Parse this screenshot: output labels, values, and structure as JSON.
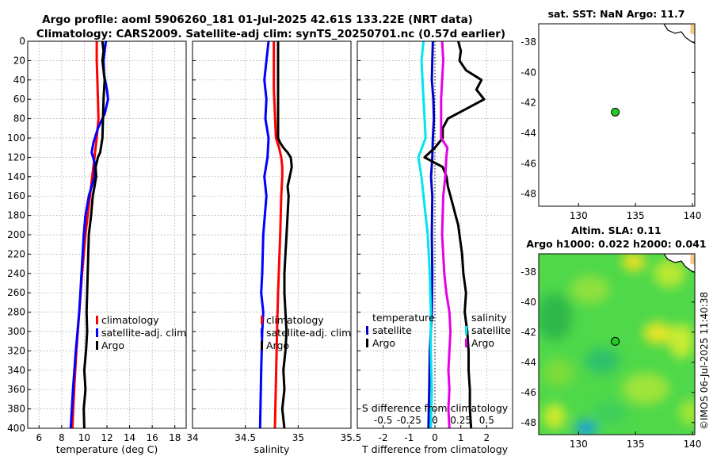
{
  "header": {
    "line1": "Argo profile: aoml 5906260_181 01-Jul-2025 42.61S 133.22E (NRT data)",
    "line2": "Climatology: CARS2009. Satellite-adj clim: synTS_20250701.nc (0.57d earlier)"
  },
  "watermark": "©IMOS 06-Jul-2025 11:40:38",
  "colors": {
    "climatology": "#ff0000",
    "satellite": "#0000ff",
    "argo": "#000000",
    "temp_diff_satellite": "#0000cc",
    "sal_diff_satellite": "#00e5ee",
    "sal_diff_argo": "#e600e6",
    "marker": "#22cc22"
  },
  "chart_data": [
    {
      "type": "line",
      "id": "temperature",
      "xlabel": "temperature (deg C)",
      "ylabel": "",
      "xlim": [
        5,
        19
      ],
      "ylim": [
        0,
        400
      ],
      "x_ticks": [
        "6",
        "8",
        "10",
        "12",
        "14",
        "16",
        "18"
      ],
      "y_ticks": [
        "0",
        "20",
        "40",
        "60",
        "80",
        "100",
        "120",
        "140",
        "160",
        "180",
        "200",
        "220",
        "240",
        "260",
        "280",
        "300",
        "320",
        "340",
        "360",
        "380",
        "400"
      ],
      "legend": [
        "climatology",
        "satellite-adj. clim",
        "Argo"
      ],
      "series": [
        {
          "name": "climatology",
          "color": "#ff0000",
          "depth": [
            0,
            20,
            40,
            60,
            80,
            100,
            110,
            120,
            140,
            160,
            180,
            200,
            240,
            280,
            320,
            360,
            400
          ],
          "values": [
            11.1,
            11.1,
            11.15,
            11.2,
            11.25,
            11.1,
            11.0,
            10.9,
            10.7,
            10.5,
            10.3,
            10.1,
            9.8,
            9.55,
            9.3,
            9.1,
            8.95
          ]
        },
        {
          "name": "satellite-adj. clim",
          "color": "#0000ff",
          "depth": [
            0,
            10,
            20,
            35,
            50,
            60,
            75,
            90,
            105,
            115,
            125,
            140,
            160,
            180,
            200,
            240,
            280,
            320,
            360,
            400
          ],
          "values": [
            11.9,
            11.8,
            11.7,
            11.75,
            12.0,
            12.1,
            11.8,
            11.2,
            10.8,
            10.65,
            10.9,
            10.9,
            10.4,
            10.1,
            9.95,
            9.75,
            9.55,
            9.25,
            9.0,
            8.8
          ]
        },
        {
          "name": "Argo",
          "color": "#000000",
          "depth": [
            0,
            10,
            20,
            40,
            60,
            80,
            100,
            115,
            120,
            130,
            140,
            150,
            160,
            180,
            200,
            220,
            240,
            260,
            280,
            300,
            320,
            340,
            360,
            380,
            400
          ],
          "values": [
            11.6,
            11.7,
            11.6,
            11.8,
            11.7,
            11.65,
            11.6,
            11.4,
            11.2,
            11.0,
            11.05,
            10.9,
            10.75,
            10.6,
            10.4,
            10.35,
            10.3,
            10.25,
            10.2,
            10.25,
            10.15,
            10.0,
            10.1,
            9.95,
            10.0
          ]
        }
      ]
    },
    {
      "type": "line",
      "id": "salinity",
      "xlabel": "salinity",
      "ylabel": "",
      "xlim": [
        34,
        35.5
      ],
      "ylim": [
        0,
        400
      ],
      "x_ticks": [
        "34",
        "34.5",
        "35",
        "35.5"
      ],
      "legend": [
        "climatology",
        "satellite-adj. clim",
        "Argo"
      ],
      "series": [
        {
          "name": "climatology",
          "color": "#ff0000",
          "depth": [
            0,
            50,
            100,
            110,
            120,
            130,
            140,
            160,
            200,
            260,
            300,
            400
          ],
          "values": [
            34.77,
            34.77,
            34.79,
            34.82,
            34.84,
            34.85,
            34.85,
            34.84,
            34.83,
            34.81,
            34.8,
            34.78
          ]
        },
        {
          "name": "satellite-adj. clim",
          "color": "#0000ff",
          "depth": [
            0,
            20,
            40,
            60,
            80,
            100,
            120,
            140,
            160,
            200,
            240,
            260,
            280,
            300,
            340,
            400
          ],
          "values": [
            34.72,
            34.7,
            34.68,
            34.7,
            34.69,
            34.72,
            34.71,
            34.68,
            34.7,
            34.67,
            34.66,
            34.65,
            34.67,
            34.66,
            34.65,
            34.64
          ]
        },
        {
          "name": "Argo",
          "color": "#000000",
          "depth": [
            0,
            20,
            40,
            60,
            80,
            100,
            105,
            110,
            115,
            120,
            130,
            140,
            150,
            160,
            180,
            200,
            220,
            240,
            260,
            280,
            300,
            320,
            340,
            360,
            380,
            400
          ],
          "values": [
            34.81,
            34.81,
            34.81,
            34.81,
            34.81,
            34.81,
            34.83,
            34.86,
            34.9,
            34.93,
            34.94,
            34.92,
            34.9,
            34.91,
            34.9,
            34.89,
            34.88,
            34.87,
            34.87,
            34.88,
            34.89,
            34.88,
            34.86,
            34.87,
            34.85,
            34.87
          ]
        }
      ]
    },
    {
      "type": "line",
      "id": "differences",
      "xlabel": "T difference from climatology",
      "top_xlabel": "S difference from climatology",
      "xlim": [
        -3,
        3
      ],
      "ylim": [
        0,
        400
      ],
      "x_ticks": [
        "-2",
        "-1",
        "0",
        "1",
        "2"
      ],
      "top_ticks": [
        "-0.5",
        "-0.25",
        "0",
        "0.25",
        "0.5"
      ],
      "legend_headers": [
        "temperature",
        "salinity"
      ],
      "legend": [
        "satellite",
        "Argo",
        "satellite",
        "Argo"
      ],
      "series": [
        {
          "name": "temperature satellite",
          "color": "#0000cc",
          "depth": [
            0,
            20,
            40,
            60,
            80,
            100,
            120,
            140,
            160,
            200,
            240,
            280,
            320,
            360,
            400
          ],
          "values": [
            -0.08,
            -0.1,
            -0.12,
            -0.06,
            -0.04,
            -0.08,
            -0.1,
            -0.15,
            -0.1,
            -0.12,
            -0.1,
            -0.12,
            -0.2,
            -0.22,
            -0.25
          ]
        },
        {
          "name": "temperature Argo",
          "color": "#000000",
          "depth": [
            0,
            10,
            20,
            30,
            40,
            50,
            60,
            70,
            80,
            90,
            100,
            110,
            120,
            130,
            140,
            150,
            160,
            170,
            180,
            190,
            200,
            220,
            240,
            260,
            280,
            300,
            320,
            340,
            360,
            380,
            400
          ],
          "values": [
            0.9,
            1.0,
            0.95,
            1.2,
            1.8,
            1.6,
            1.9,
            1.2,
            0.5,
            0.3,
            0.3,
            0.0,
            -0.4,
            0.3,
            0.45,
            0.5,
            0.6,
            0.7,
            0.8,
            0.9,
            0.95,
            1.05,
            1.1,
            1.2,
            1.15,
            1.25,
            1.3,
            1.3,
            1.35,
            1.35,
            1.4
          ]
        },
        {
          "name": "salinity satellite",
          "color": "#00e5ee",
          "depth": [
            0,
            20,
            60,
            100,
            120,
            140,
            160,
            200,
            240,
            280,
            320,
            360,
            400
          ],
          "values": [
            -0.11,
            -0.13,
            -0.11,
            -0.09,
            -0.16,
            -0.13,
            -0.11,
            -0.07,
            -0.05,
            -0.04,
            -0.04,
            -0.03,
            -0.04
          ]
        },
        {
          "name": "salinity Argo",
          "color": "#e600e6",
          "depth": [
            0,
            20,
            40,
            60,
            80,
            100,
            110,
            120,
            140,
            160,
            200,
            240,
            260,
            280,
            300,
            320,
            340,
            360,
            380,
            400
          ],
          "values": [
            0.07,
            0.08,
            0.07,
            0.06,
            0.06,
            0.06,
            0.12,
            0.11,
            0.1,
            0.08,
            0.07,
            0.09,
            0.11,
            0.14,
            0.15,
            0.14,
            0.13,
            0.14,
            0.13,
            0.14
          ]
        }
      ]
    },
    {
      "type": "scatter",
      "id": "sst_map",
      "title": "sat. SST: NaN Argo: 11.7",
      "xlim": [
        126.5,
        140.2
      ],
      "ylim": [
        -48.8,
        -36.8
      ],
      "x_ticks": [
        "130",
        "135",
        "140"
      ],
      "y_ticks": [
        "-38",
        "-40",
        "-42",
        "-44",
        "-46",
        "-48"
      ],
      "points": [
        {
          "lon": 133.22,
          "lat": -42.61
        }
      ]
    },
    {
      "type": "heatmap",
      "id": "sla_map",
      "title_line1": "Altim. SLA: 0.11",
      "title_line2": "Argo h1000: 0.022 h2000: 0.041",
      "xlim": [
        126.5,
        140.2
      ],
      "ylim": [
        -48.8,
        -36.8
      ],
      "x_ticks": [
        "130",
        "135",
        "140"
      ],
      "y_ticks": [
        "-38",
        "-40",
        "-42",
        "-44",
        "-46",
        "-48"
      ],
      "points": [
        {
          "lon": 133.22,
          "lat": -42.61
        }
      ]
    }
  ]
}
